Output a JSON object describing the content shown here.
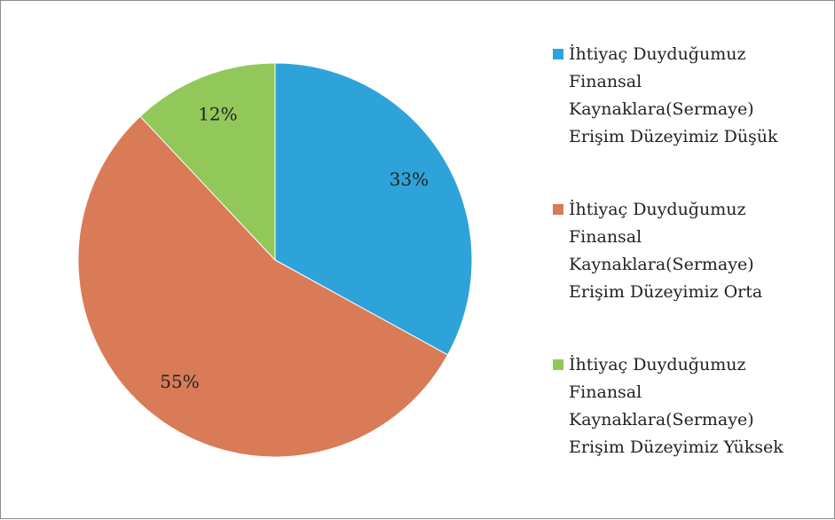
{
  "chart_data": {
    "type": "pie",
    "categories": [
      "İhtiyaç Duyduğumuz Finansal Kaynaklara(Sermaye) Erişim Düzeyimiz Düşük",
      "İhtiyaç Duyduğumuz Finansal Kaynaklara(Sermaye) Erişim Düzeyimiz Orta",
      "İhtiyaç Duyduğumuz Finansal Kaynaklara(Sermaye) Erişim Düzeyimiz Yüksek"
    ],
    "values": [
      33,
      55,
      12
    ],
    "value_labels": [
      "33%",
      "55%",
      "12%"
    ],
    "colors": [
      "#2ea3d9",
      "#d97b57",
      "#92c85a"
    ],
    "legend": "right"
  }
}
